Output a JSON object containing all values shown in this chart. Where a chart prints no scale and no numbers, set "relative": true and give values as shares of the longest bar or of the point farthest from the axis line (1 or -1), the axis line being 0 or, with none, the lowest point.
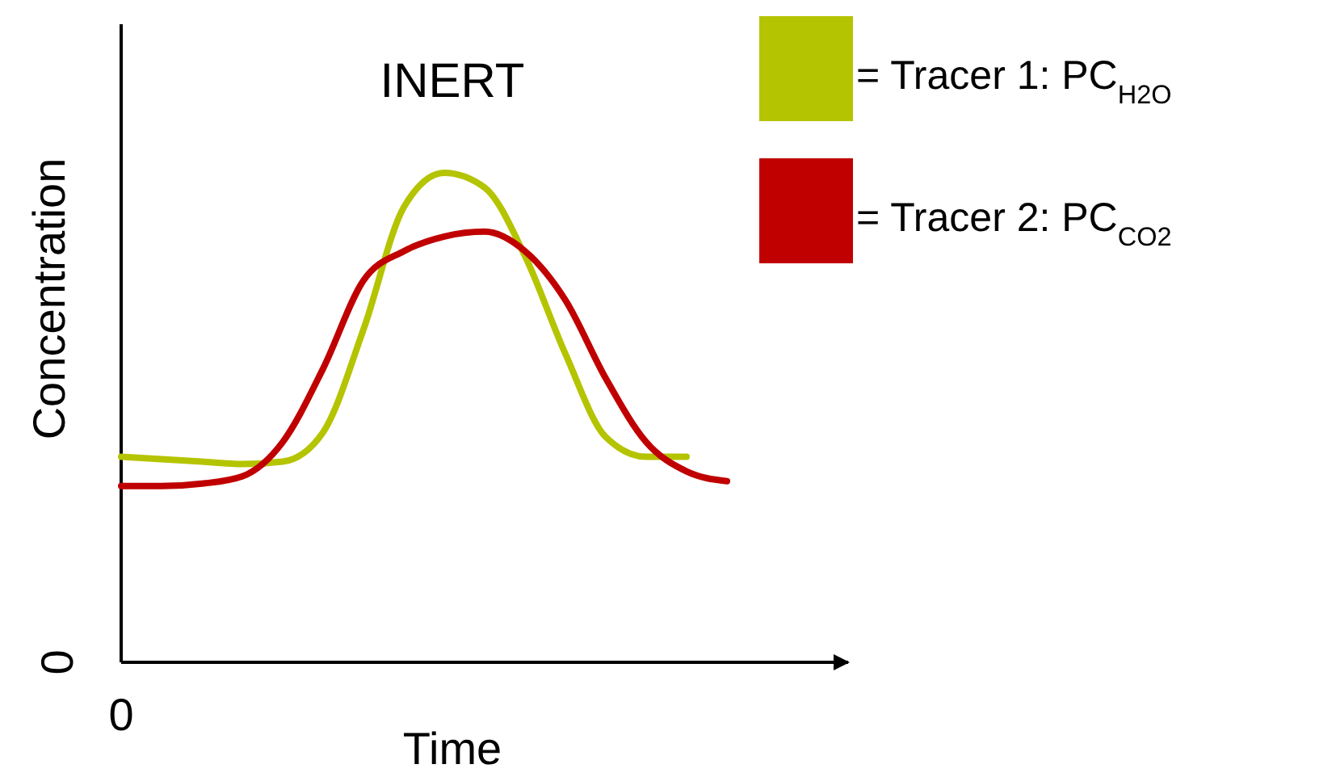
{
  "chart_data": {
    "type": "line",
    "title": "INERT",
    "xlabel": "Time",
    "ylabel": "Concentration",
    "relative": true,
    "legend": "top right",
    "annotations": [
      "0",
      "0"
    ],
    "categories": [
      null,
      null,
      null,
      null,
      null,
      null,
      null,
      null,
      null,
      null,
      null,
      null,
      null,
      null,
      null,
      null,
      null,
      null,
      null
    ],
    "series": [
      {
        "name": "= Tracer 1: PC$_{H2O}$",
        "color": "#b5c400",
        "values": [
          0.42,
          0.415,
          0.41,
          0.405,
          0.41,
          0.47,
          0.68,
          0.93,
          1.0,
          0.97,
          0.83,
          0.63,
          0.46,
          0.42,
          0.42,
          null,
          null,
          null,
          null
        ]
      },
      {
        "name": "= Tracer 2: PC$_{CO2}$",
        "color": "#c00000",
        "values": [
          0.36,
          0.36,
          0.365,
          0.38,
          0.45,
          0.6,
          0.78,
          0.84,
          0.87,
          0.88,
          0.84,
          0.74,
          0.58,
          0.45,
          0.39,
          0.37,
          null,
          null,
          null
        ]
      }
    ]
  }
}
